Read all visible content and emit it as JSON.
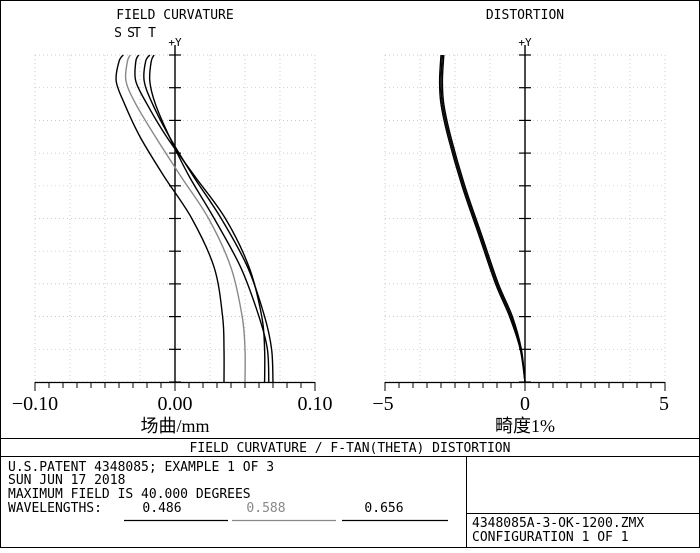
{
  "chart_data": [
    {
      "type": "line",
      "title": "FIELD CURVATURE",
      "axis_top_label": "+Y",
      "xlabel": "场曲/mm",
      "xlim": [
        -0.1,
        0.1
      ],
      "xtick_labels": [
        "−0.10",
        "0.00",
        "0.10"
      ],
      "ylim": [
        0,
        1
      ],
      "legend": [
        "S",
        "S",
        "T",
        "T"
      ],
      "grid": true,
      "series": [
        {
          "name": "S",
          "color": "#000000",
          "points": [
            [
              0.035,
              0.0
            ],
            [
              0.035,
              0.1
            ],
            [
              0.034,
              0.2
            ],
            [
              0.028,
              0.35
            ],
            [
              0.012,
              0.5
            ],
            [
              -0.008,
              0.63
            ],
            [
              -0.025,
              0.75
            ],
            [
              -0.036,
              0.85
            ],
            [
              -0.042,
              0.92
            ],
            [
              -0.04,
              0.98
            ],
            [
              -0.037,
              1.0
            ]
          ]
        },
        {
          "name": "S",
          "color": "#888888",
          "points": [
            [
              0.05,
              0.0
            ],
            [
              0.05,
              0.1
            ],
            [
              0.048,
              0.2
            ],
            [
              0.04,
              0.35
            ],
            [
              0.024,
              0.5
            ],
            [
              0.004,
              0.63
            ],
            [
              -0.014,
              0.75
            ],
            [
              -0.028,
              0.85
            ],
            [
              -0.035,
              0.92
            ],
            [
              -0.034,
              0.98
            ],
            [
              -0.032,
              1.0
            ]
          ]
        },
        {
          "name": "S",
          "color": "#000000",
          "points": [
            [
              0.064,
              0.0
            ],
            [
              0.064,
              0.1
            ],
            [
              0.062,
              0.2
            ],
            [
              0.053,
              0.35
            ],
            [
              0.036,
              0.5
            ],
            [
              0.014,
              0.63
            ],
            [
              -0.006,
              0.75
            ],
            [
              -0.02,
              0.85
            ],
            [
              -0.028,
              0.92
            ],
            [
              -0.028,
              0.98
            ],
            [
              -0.026,
              1.0
            ]
          ]
        },
        {
          "name": "T",
          "color": "#000000",
          "points": [
            [
              0.067,
              0.0
            ],
            [
              0.066,
              0.1
            ],
            [
              0.06,
              0.2
            ],
            [
              0.047,
              0.35
            ],
            [
              0.028,
              0.5
            ],
            [
              0.01,
              0.63
            ],
            [
              -0.004,
              0.75
            ],
            [
              -0.014,
              0.85
            ],
            [
              -0.018,
              0.92
            ],
            [
              -0.017,
              0.98
            ],
            [
              -0.015,
              1.0
            ]
          ]
        },
        {
          "name": "T",
          "color": "#000000",
          "points": [
            [
              0.07,
              0.0
            ],
            [
              0.069,
              0.1
            ],
            [
              0.064,
              0.2
            ],
            [
              0.052,
              0.35
            ],
            [
              0.033,
              0.5
            ],
            [
              0.013,
              0.63
            ],
            [
              -0.004,
              0.75
            ],
            [
              -0.016,
              0.85
            ],
            [
              -0.022,
              0.92
            ],
            [
              -0.021,
              0.98
            ],
            [
              -0.018,
              1.0
            ]
          ]
        }
      ]
    },
    {
      "type": "line",
      "title": "DISTORTION",
      "axis_top_label": "+Y",
      "xlabel": "畸度1%",
      "xlim": [
        -5,
        5
      ],
      "xtick_labels": [
        "−5",
        "0",
        "5"
      ],
      "ylim": [
        0,
        1
      ],
      "grid": true,
      "series": [
        {
          "color": "#000000",
          "points": [
            [
              0.0,
              0.0
            ],
            [
              -0.15,
              0.1
            ],
            [
              -0.5,
              0.2
            ],
            [
              -1.0,
              0.3
            ],
            [
              -1.6,
              0.45
            ],
            [
              -2.2,
              0.6
            ],
            [
              -2.7,
              0.75
            ],
            [
              -2.95,
              0.85
            ],
            [
              -3.0,
              0.92
            ],
            [
              -2.95,
              1.0
            ]
          ]
        },
        {
          "color": "#000000",
          "points": [
            [
              0.0,
              0.0
            ],
            [
              -0.13,
              0.1
            ],
            [
              -0.45,
              0.2
            ],
            [
              -0.95,
              0.3
            ],
            [
              -1.55,
              0.45
            ],
            [
              -2.15,
              0.6
            ],
            [
              -2.65,
              0.75
            ],
            [
              -2.9,
              0.85
            ],
            [
              -2.95,
              0.92
            ],
            [
              -2.9,
              1.0
            ]
          ]
        },
        {
          "color": "#000000",
          "points": [
            [
              0.0,
              0.0
            ],
            [
              -0.17,
              0.1
            ],
            [
              -0.55,
              0.2
            ],
            [
              -1.05,
              0.3
            ],
            [
              -1.65,
              0.45
            ],
            [
              -2.25,
              0.6
            ],
            [
              -2.75,
              0.75
            ],
            [
              -3.0,
              0.85
            ],
            [
              -3.05,
              0.92
            ],
            [
              -3.0,
              1.0
            ]
          ]
        }
      ]
    }
  ],
  "caption_bar": "FIELD CURVATURE / F-TAN(THETA) DISTORTION",
  "info": {
    "line1": "U.S.PATENT 4348085; EXAMPLE 1 OF 3",
    "line2": "SUN JUN 17 2018",
    "line3": "MAXIMUM FIELD IS 40.000 DEGREES",
    "wavelengths_label": "WAVELENGTHS:",
    "wavelengths": [
      {
        "value": "0.486",
        "color": "#000000"
      },
      {
        "value": "0.588",
        "color": "#888888"
      },
      {
        "value": "0.656",
        "color": "#000000"
      }
    ]
  },
  "file": {
    "name": "4348085A-3-OK-1200.ZMX",
    "configuration": "CONFIGURATION 1 OF 1"
  }
}
